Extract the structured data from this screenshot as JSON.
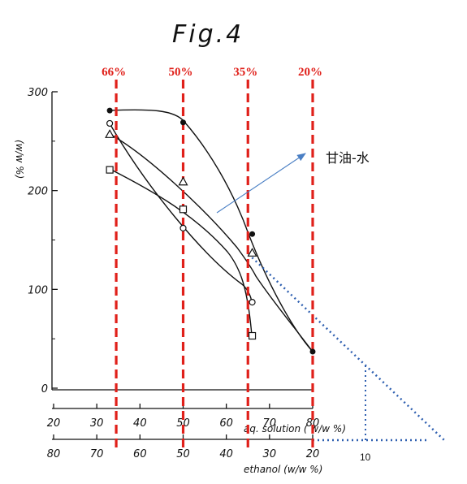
{
  "chart_data": {
    "type": "scatter",
    "title": "Fig.4",
    "ylabel": "(w/w %)",
    "ylim": [
      0,
      300
    ],
    "y_ticks": [
      "300",
      "200",
      "100",
      "0"
    ],
    "x_axis_aq": {
      "label": "aq. solution ( w/w %)",
      "ticks": [
        "20",
        "30",
        "40",
        "50",
        "60",
        "70",
        "80"
      ]
    },
    "x_axis_ethanol": {
      "label": "ethanol (w/w %)",
      "ticks": [
        "80",
        "70",
        "60",
        "50",
        "40",
        "30",
        "20"
      ]
    },
    "series": [
      {
        "marker": "filled-circle",
        "x": [
          33,
          50,
          66,
          80
        ],
        "y": [
          281,
          269,
          156,
          37
        ]
      },
      {
        "marker": "open-circle",
        "x": [
          33,
          50,
          66
        ],
        "y": [
          268,
          162,
          87
        ]
      },
      {
        "marker": "open-triangle",
        "x": [
          33,
          50,
          66
        ],
        "y": [
          257,
          209,
          137
        ]
      },
      {
        "marker": "open-square",
        "x": [
          33,
          50,
          66
        ],
        "y": [
          221,
          181,
          53
        ]
      }
    ],
    "vertical_markers": [
      {
        "label": "66%",
        "x_aq": 34.5
      },
      {
        "label": "50%",
        "x_aq": 50
      },
      {
        "label": "35%",
        "x_aq": 65
      },
      {
        "label": "20%",
        "x_aq": 80
      }
    ],
    "annotation": {
      "text": "甘油-水",
      "target": {
        "x": 65,
        "y": 135
      }
    },
    "extrapolation_label": "10",
    "grid": false
  }
}
